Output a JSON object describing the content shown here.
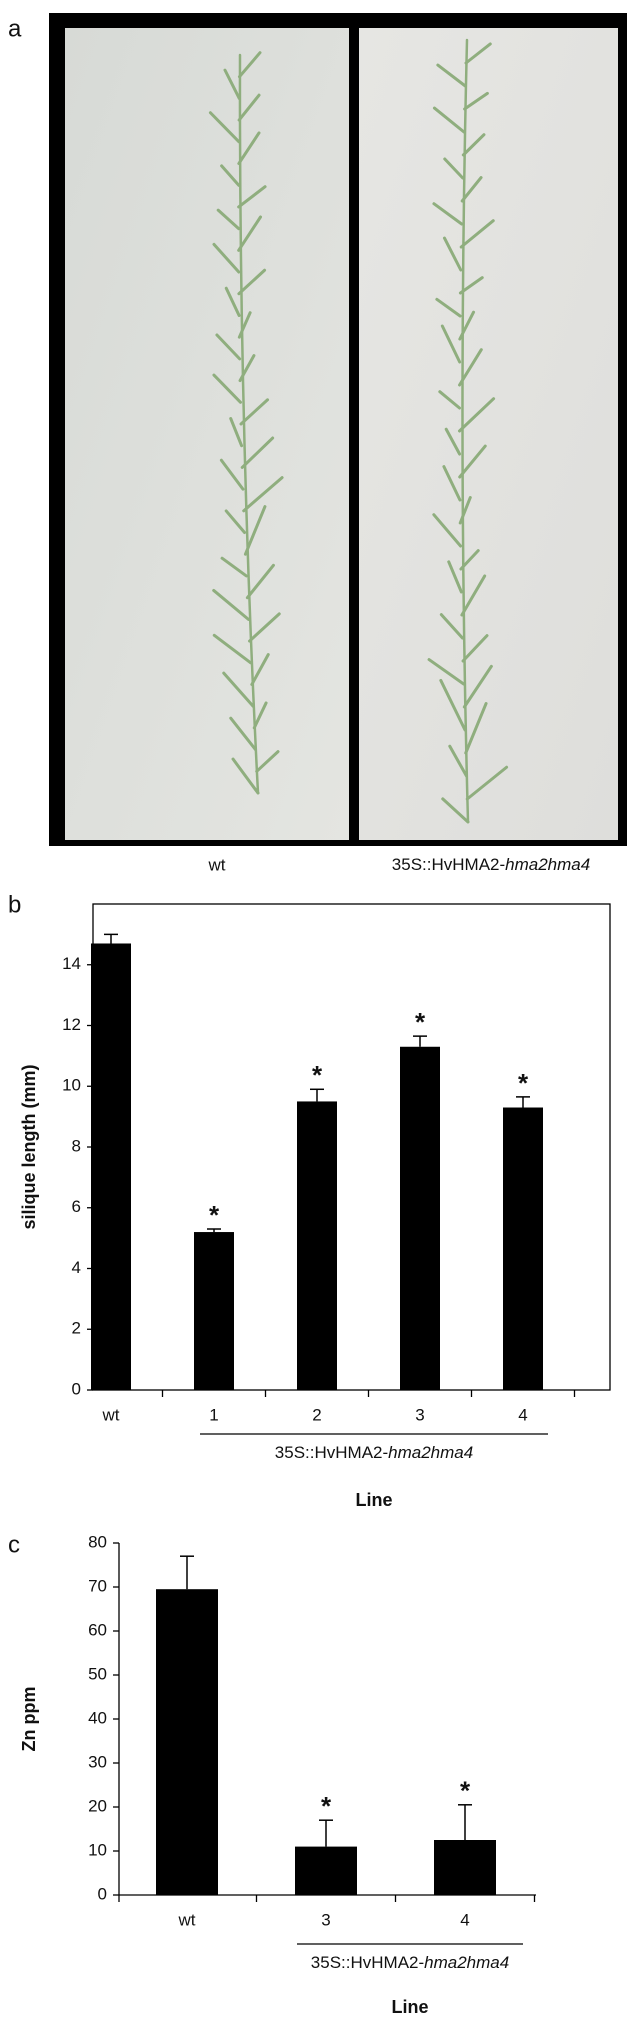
{
  "panel_labels": [
    "a",
    "b",
    "c"
  ],
  "photo": {
    "labels": [
      "wt",
      {
        "prefix": "35S::HvHMA2-",
        "italic": "hma2hma4"
      }
    ]
  },
  "chart_data": [
    {
      "type": "bar",
      "ylabel": "silique length (mm)",
      "xlabel": "Line",
      "categories": [
        "wt",
        "1",
        "2",
        "3",
        "4"
      ],
      "values": [
        14.7,
        5.2,
        9.5,
        11.3,
        9.3
      ],
      "errors": [
        0.3,
        0.1,
        0.4,
        0.35,
        0.35
      ],
      "markers": [
        null,
        "*",
        "*",
        "*",
        "*"
      ],
      "group_label": {
        "prefix": "35S::HvHMA2-",
        "italic": "hma2hma4"
      },
      "color": "#000000",
      "ylim": [
        0,
        16
      ],
      "yticks": [
        0,
        2,
        4,
        6,
        8,
        10,
        12,
        14
      ]
    },
    {
      "type": "bar",
      "ylabel": "Zn ppm",
      "xlabel": "Line",
      "categories": [
        "wt",
        "3",
        "4"
      ],
      "values": [
        69.5,
        11,
        12.5
      ],
      "errors": [
        7.5,
        6,
        8
      ],
      "markers": [
        null,
        "*",
        "*"
      ],
      "group_label": {
        "prefix": "35S::HvHMA2-",
        "italic": "hma2hma4"
      },
      "color": "#000000",
      "ylim": [
        0,
        80
      ],
      "yticks": [
        0,
        10,
        20,
        30,
        40,
        50,
        60,
        70,
        80
      ]
    }
  ]
}
